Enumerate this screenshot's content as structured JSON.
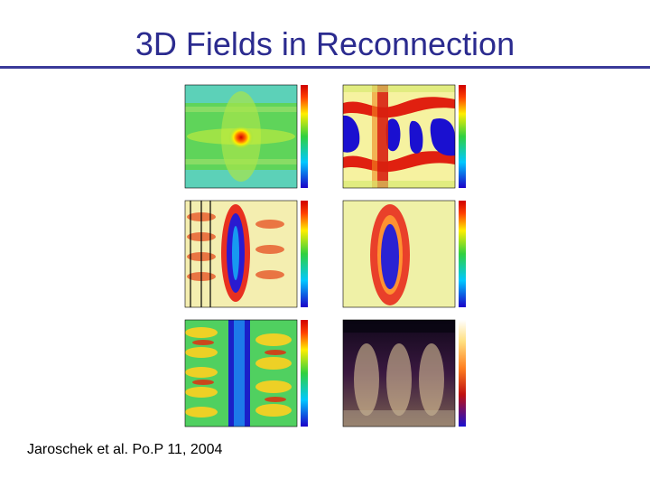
{
  "slide": {
    "title": "3D Fields in Reconnection",
    "citation": "Jaroschek et al. Po.P 11, 2004"
  },
  "colors": {
    "title": "#2b2b8f",
    "rule": "#3a3a9a"
  },
  "figure": {
    "panels": [
      {
        "name": "panel-top-left",
        "colormap": "rainbow"
      },
      {
        "name": "panel-top-right",
        "colormap": "rainbow"
      },
      {
        "name": "panel-middle-left",
        "colormap": "rainbow"
      },
      {
        "name": "panel-middle-right",
        "colormap": "rainbow"
      },
      {
        "name": "panel-bottom-left",
        "colormap": "rainbow"
      },
      {
        "name": "panel-bottom-right",
        "colormap": "heat"
      }
    ]
  }
}
